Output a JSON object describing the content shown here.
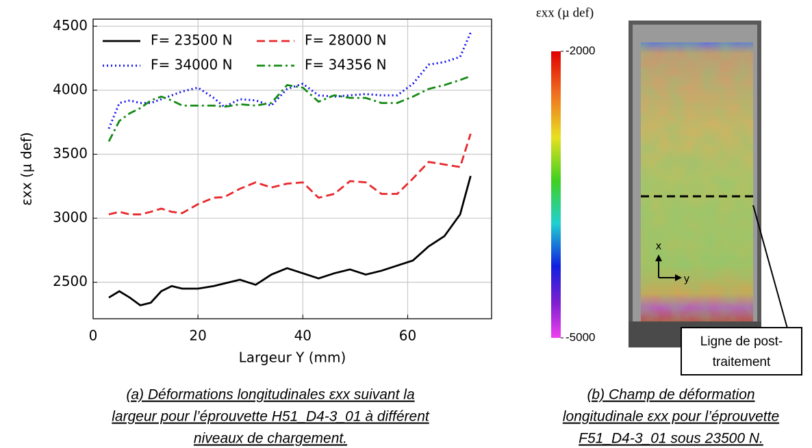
{
  "chart_data": {
    "type": "line",
    "xlabel": "Largeur Y (mm)",
    "ylabel": "εxx (µ def)",
    "x": [
      3,
      5,
      7,
      9,
      11,
      13,
      15,
      17,
      20,
      23,
      25,
      28,
      31,
      34,
      37,
      40,
      43,
      46,
      49,
      52,
      55,
      58,
      61,
      64,
      67,
      70,
      72
    ],
    "series": [
      {
        "name": "F= 23500 N",
        "color": "#000000",
        "linestyle": "solid",
        "values": [
          2380,
          2430,
          2380,
          2320,
          2340,
          2430,
          2470,
          2450,
          2450,
          2470,
          2490,
          2520,
          2480,
          2560,
          2610,
          2570,
          2530,
          2570,
          2600,
          2560,
          2590,
          2630,
          2670,
          2780,
          2860,
          3030,
          3330
        ]
      },
      {
        "name": "F= 28000 N",
        "color": "#e8262a",
        "linestyle": "dashed",
        "values": [
          3030,
          3050,
          3030,
          3030,
          3050,
          3075,
          3050,
          3040,
          3110,
          3160,
          3165,
          3230,
          3280,
          3240,
          3270,
          3280,
          3160,
          3190,
          3290,
          3280,
          3190,
          3190,
          3310,
          3440,
          3420,
          3400,
          3660
        ]
      },
      {
        "name": "F= 34000 N",
        "color": "#1010ee",
        "linestyle": "dotted",
        "values": [
          3700,
          3900,
          3920,
          3900,
          3900,
          3930,
          3960,
          3990,
          4020,
          3940,
          3870,
          3930,
          3920,
          3880,
          4010,
          4050,
          3960,
          3950,
          3960,
          3970,
          3960,
          3960,
          4050,
          4200,
          4220,
          4260,
          4450
        ]
      },
      {
        "name": "F= 34356 N",
        "color": "#138a13",
        "linestyle": "dashdot",
        "values": [
          3600,
          3760,
          3820,
          3860,
          3920,
          3950,
          3920,
          3880,
          3880,
          3880,
          3870,
          3890,
          3880,
          3900,
          4040,
          4020,
          3910,
          3960,
          3940,
          3940,
          3900,
          3900,
          3950,
          4010,
          4040,
          4080,
          4110
        ]
      }
    ],
    "xlim": [
      0,
      76
    ],
    "xticks": [
      0,
      20,
      40,
      60
    ],
    "ylim": [
      2215,
      4555
    ],
    "yticks": [
      2500,
      3000,
      3500,
      4000,
      4500
    ],
    "grid": true,
    "legend": "upper left",
    "caption": [
      "(a) Déformations longitudinales εxx suivant la",
      "largeur pour l’éprouvette H51_D4-3_01 à différent",
      "niveaux de chargement."
    ]
  },
  "figure_b": {
    "colorbar": {
      "label": "εxx (µ def)",
      "min": -5000,
      "max": -2000,
      "ticks": [
        -2000,
        -5000
      ]
    },
    "axis_x": "x",
    "axis_y": "y",
    "annotation": [
      "Ligne de post-",
      "traitement"
    ],
    "caption": [
      "(b) Champ de déformation",
      "longitudinale εxx pour l’éprouvette",
      "F51_D4-3_01 sous 23500 N."
    ]
  }
}
